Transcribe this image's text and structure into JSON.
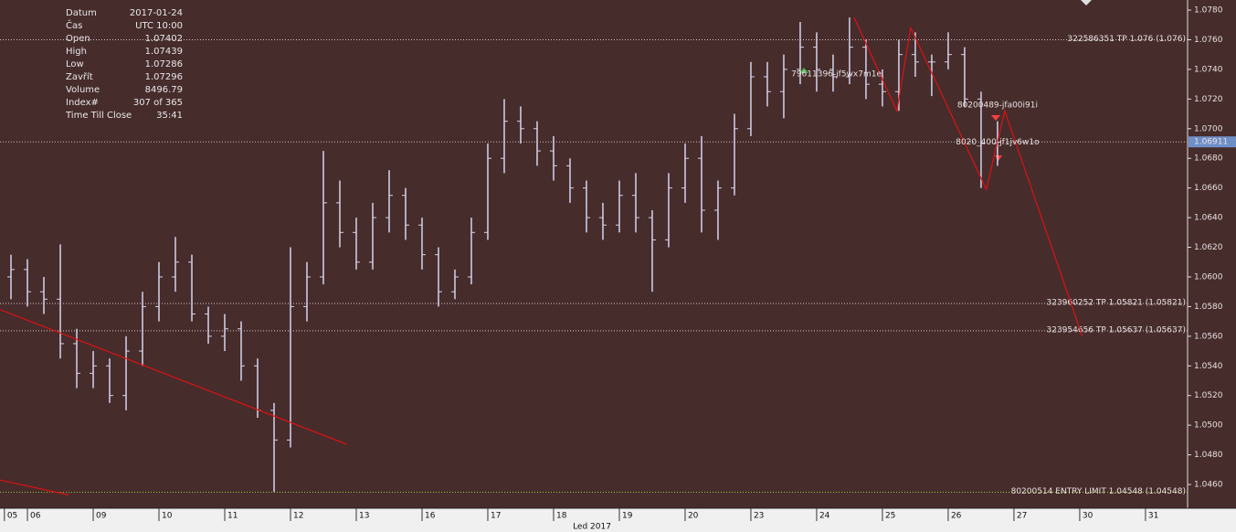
{
  "info": {
    "rows": [
      [
        "Datum",
        "2017-01-24"
      ],
      [
        "Čas",
        "UTC 10:00"
      ],
      [
        "Open",
        "1.07402"
      ],
      [
        "High",
        "1.07439"
      ],
      [
        "Low",
        "1.07286"
      ],
      [
        "Zavřít",
        "1.07296"
      ],
      [
        "Volume",
        "8496.79"
      ],
      [
        "Index#",
        "307 of 365"
      ],
      [
        "Time Till Close",
        "35:41"
      ]
    ]
  },
  "chart_data": {
    "type": "ohlc",
    "bar_color": "#d4d4ec",
    "grid": false,
    "x_label": "Led 2017",
    "xlim": [
      -0.417,
      17.64
    ],
    "xticks": [
      {
        "value": -0.35,
        "label": "05"
      },
      {
        "value": 0,
        "label": "06"
      },
      {
        "value": 1,
        "label": "09"
      },
      {
        "value": 2,
        "label": "10"
      },
      {
        "value": 3,
        "label": "11"
      },
      {
        "value": 4,
        "label": "12"
      },
      {
        "value": 5,
        "label": "13"
      },
      {
        "value": 6,
        "label": "16"
      },
      {
        "value": 7,
        "label": "17"
      },
      {
        "value": 8,
        "label": "18"
      },
      {
        "value": 9,
        "label": "19"
      },
      {
        "value": 10,
        "label": "20"
      },
      {
        "value": 11,
        "label": "23"
      },
      {
        "value": 12,
        "label": "24"
      },
      {
        "value": 13,
        "label": "25"
      },
      {
        "value": 14,
        "label": "26"
      },
      {
        "value": 15,
        "label": "27"
      },
      {
        "value": 16,
        "label": "30"
      },
      {
        "value": 17,
        "label": "31"
      }
    ],
    "ylim": [
      1.04446,
      1.07868
    ],
    "yticks": [
      {
        "value": 1.046,
        "label": "1.0460"
      },
      {
        "value": 1.048,
        "label": "1.0480"
      },
      {
        "value": 1.05,
        "label": "1.0500"
      },
      {
        "value": 1.052,
        "label": "1.0520"
      },
      {
        "value": 1.054,
        "label": "1.0540"
      },
      {
        "value": 1.056,
        "label": "1.0560"
      },
      {
        "value": 1.058,
        "label": "1.0580"
      },
      {
        "value": 1.06,
        "label": "1.0600"
      },
      {
        "value": 1.062,
        "label": "1.0620"
      },
      {
        "value": 1.064,
        "label": "1.0640"
      },
      {
        "value": 1.066,
        "label": "1.0660"
      },
      {
        "value": 1.068,
        "label": "1.0680"
      },
      {
        "value": 1.07,
        "label": "1.0700"
      },
      {
        "value": 1.072,
        "label": "1.0720"
      },
      {
        "value": 1.074,
        "label": "1.0740"
      },
      {
        "value": 1.076,
        "label": "1.0760"
      },
      {
        "value": 1.078,
        "label": "1.0780"
      }
    ],
    "bars": [
      [
        -0.25,
        1.06,
        1.0615,
        1.0585,
        1.0605
      ],
      [
        0,
        1.0605,
        1.0612,
        1.058,
        1.059
      ],
      [
        0.25,
        1.059,
        1.06,
        1.0575,
        1.0585
      ],
      [
        0.5,
        1.0585,
        1.0622,
        1.0545,
        1.0555
      ],
      [
        0.75,
        1.0555,
        1.0565,
        1.0525,
        1.0535
      ],
      [
        1,
        1.0535,
        1.055,
        1.0525,
        1.054
      ],
      [
        1.25,
        1.054,
        1.0545,
        1.0515,
        1.052
      ],
      [
        1.5,
        1.052,
        1.056,
        1.051,
        1.055
      ],
      [
        1.75,
        1.055,
        1.059,
        1.054,
        1.058
      ],
      [
        2,
        1.058,
        1.061,
        1.057,
        1.06
      ],
      [
        2.25,
        1.06,
        1.0627,
        1.059,
        1.061
      ],
      [
        2.5,
        1.061,
        1.0615,
        1.057,
        1.0575
      ],
      [
        2.75,
        1.0575,
        1.058,
        1.0555,
        1.056
      ],
      [
        3,
        1.056,
        1.0575,
        1.055,
        1.0565
      ],
      [
        3.25,
        1.0565,
        1.057,
        1.053,
        1.054
      ],
      [
        3.5,
        1.054,
        1.0545,
        1.0505,
        1.051
      ],
      [
        3.75,
        1.051,
        1.0515,
        1.0455,
        1.049
      ],
      [
        4,
        1.049,
        1.062,
        1.0485,
        1.058
      ],
      [
        4.25,
        1.058,
        1.061,
        1.057,
        1.06
      ],
      [
        4.5,
        1.06,
        1.0685,
        1.0595,
        1.065
      ],
      [
        4.75,
        1.065,
        1.0665,
        1.062,
        1.063
      ],
      [
        5,
        1.063,
        1.064,
        1.0605,
        1.061
      ],
      [
        5.25,
        1.061,
        1.065,
        1.0605,
        1.064
      ],
      [
        5.5,
        1.064,
        1.0672,
        1.063,
        1.0655
      ],
      [
        5.75,
        1.0655,
        1.066,
        1.0625,
        1.0635
      ],
      [
        6,
        1.0635,
        1.064,
        1.0605,
        1.0615
      ],
      [
        6.25,
        1.0615,
        1.062,
        1.058,
        1.059
      ],
      [
        6.5,
        1.059,
        1.0605,
        1.0585,
        1.06
      ],
      [
        6.75,
        1.06,
        1.064,
        1.0595,
        1.063
      ],
      [
        7,
        1.063,
        1.069,
        1.0625,
        1.068
      ],
      [
        7.25,
        1.068,
        1.072,
        1.067,
        1.0705
      ],
      [
        7.5,
        1.0705,
        1.0715,
        1.069,
        1.07
      ],
      [
        7.75,
        1.07,
        1.0705,
        1.0675,
        1.0685
      ],
      [
        8,
        1.0685,
        1.0695,
        1.0665,
        1.0675
      ],
      [
        8.25,
        1.0675,
        1.068,
        1.065,
        1.066
      ],
      [
        8.5,
        1.066,
        1.0665,
        1.063,
        1.064
      ],
      [
        8.75,
        1.064,
        1.065,
        1.0625,
        1.0635
      ],
      [
        9,
        1.0635,
        1.0665,
        1.063,
        1.0655
      ],
      [
        9.25,
        1.0655,
        1.067,
        1.063,
        1.064
      ],
      [
        9.5,
        1.064,
        1.0645,
        1.059,
        1.0625
      ],
      [
        9.75,
        1.0625,
        1.067,
        1.062,
        1.066
      ],
      [
        10,
        1.066,
        1.069,
        1.065,
        1.068
      ],
      [
        10.25,
        1.068,
        1.0695,
        1.063,
        1.0645
      ],
      [
        10.5,
        1.0645,
        1.0665,
        1.0625,
        1.066
      ],
      [
        10.75,
        1.066,
        1.071,
        1.0655,
        1.07
      ],
      [
        11,
        1.07,
        1.0745,
        1.0695,
        1.0735
      ],
      [
        11.25,
        1.0735,
        1.0745,
        1.0715,
        1.0725
      ],
      [
        11.5,
        1.0725,
        1.075,
        1.0707,
        1.074
      ],
      [
        11.75,
        1.074,
        1.0772,
        1.073,
        1.0755
      ],
      [
        12,
        1.0755,
        1.0765,
        1.0725,
        1.074
      ],
      [
        12.25,
        1.074,
        1.075,
        1.0725,
        1.0735
      ],
      [
        12.5,
        1.0735,
        1.0775,
        1.073,
        1.0755
      ],
      [
        12.75,
        1.0755,
        1.076,
        1.072,
        1.073
      ],
      [
        13,
        1.073,
        1.074,
        1.0715,
        1.0725
      ],
      [
        13.25,
        1.0725,
        1.076,
        1.0712,
        1.075
      ],
      [
        13.5,
        1.075,
        1.0765,
        1.0735,
        1.0745
      ],
      [
        13.75,
        1.0745,
        1.075,
        1.0722,
        1.0745
      ],
      [
        14,
        1.0745,
        1.0765,
        1.074,
        1.075
      ],
      [
        14.25,
        1.075,
        1.0755,
        1.0715,
        1.072
      ],
      [
        14.5,
        1.072,
        1.0725,
        1.066,
        1.069
      ],
      [
        14.75,
        1.069,
        1.0705,
        1.0675,
        1.0691
      ]
    ],
    "levels": [
      {
        "value": 1.076,
        "label": "322586351 TP 1.076 (1.076)",
        "color": "#d8c8c8"
      },
      {
        "value": 1.05821,
        "label": "323960252 TP 1.05821 (1.05821)",
        "color": "#d8c8c8"
      },
      {
        "value": 1.05637,
        "label": "323954656 TP 1.05637 (1.05637)",
        "color": "#d8c8c8"
      },
      {
        "value": 1.04548,
        "label": "80200514 ENTRY LIMIT 1.04548 (1.04548)",
        "color": "#9acd32"
      }
    ],
    "last_price": {
      "value": 1.06911,
      "label": "1.06911",
      "color": "#6f8fc8"
    },
    "drawings_color": "#dd1111",
    "drawings": [
      {
        "x": [
          -0.417,
          4.86
        ],
        "y": [
          1.0578,
          1.0487
        ]
      },
      {
        "x": [
          -0.417,
          0.625
        ],
        "y": [
          1.0463,
          1.0453
        ]
      },
      {
        "x": [
          12.57,
          13.22,
          13.43,
          14.58,
          14.86,
          16.04
        ],
        "y": [
          1.0775,
          1.0712,
          1.0768,
          1.0659,
          1.0712,
          1.056
        ]
      }
    ],
    "annotations": [
      {
        "x": 12.3,
        "y": 1.0737,
        "text": "79611396-jf5wx7m1e"
      },
      {
        "x": 14.75,
        "y": 1.0716,
        "text": "80200489-jfa00i91i"
      },
      {
        "x": 14.75,
        "y": 1.0691,
        "text": "8020_400-jf1jv6w1o"
      }
    ]
  }
}
